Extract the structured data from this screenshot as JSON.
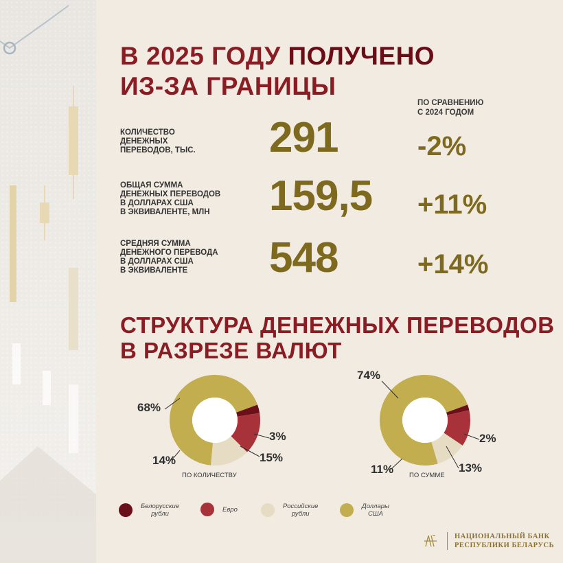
{
  "header": {
    "title_line1_prefix": "В 2025 ГОДУ",
    "title_line1_strong": "ПОЛУЧЕНО",
    "title_line2": "ИЗ-ЗА ГРАНИЦЫ",
    "comparison_line1": "ПО СРАВНЕНИЮ",
    "comparison_line2": "С 2024 ГОДОМ"
  },
  "rows": [
    {
      "label_lines": [
        "КОЛИЧЕСТВО",
        "ДЕНЕЖНЫХ",
        "ПЕРЕВОДОВ, ТЫС."
      ],
      "value": "291",
      "change": "-2%"
    },
    {
      "label_lines": [
        "ОБЩАЯ СУММА",
        "ДЕНЕЖНЫХ ПЕРЕВОДОВ",
        "В ДОЛЛАРАХ США",
        "В ЭКВИВАЛЕНТЕ, МЛН"
      ],
      "value": "159,5",
      "change": "+11%"
    },
    {
      "label_lines": [
        "СРЕДНЯЯ СУММА",
        "ДЕНЕЖНОГО ПЕРЕВОДА",
        "В ДОЛЛАРАХ США",
        "В ЭКВИВАЛЕНТЕ"
      ],
      "value": "548",
      "change": "+14%"
    }
  ],
  "structure": {
    "title_line1": "СТРУКТУРА ДЕНЕЖНЫХ ПЕРЕВОДОВ",
    "title_line2": "В РАЗРЕЗЕ ВАЛЮТ"
  },
  "colors": {
    "byn": "#6b1019",
    "eur": "#a8323a",
    "rub": "#e6dcc3",
    "usd": "#c2ad4f"
  },
  "chart_data": [
    {
      "type": "pie",
      "caption": "ПО КОЛИЧЕСТВУ",
      "categories": [
        "Белорусские рубли",
        "Евро",
        "Российские рубли",
        "Доллары США"
      ],
      "values": [
        3,
        15,
        14,
        68
      ],
      "labels": [
        "3%",
        "15%",
        "14%",
        "68%"
      ]
    },
    {
      "type": "pie",
      "caption": "ПО СУММЕ",
      "categories": [
        "Белорусские рубли",
        "Евро",
        "Российские рубли",
        "Доллары США"
      ],
      "values": [
        2,
        13,
        11,
        74
      ],
      "labels": [
        "2%",
        "13%",
        "11%",
        "74%"
      ]
    }
  ],
  "legend": [
    {
      "label_lines": [
        "Белорусские",
        "рубли"
      ],
      "color_key": "byn"
    },
    {
      "label_lines": [
        "Евро"
      ],
      "color_key": "eur"
    },
    {
      "label_lines": [
        "Российские",
        "рубли"
      ],
      "color_key": "rub"
    },
    {
      "label_lines": [
        "Доллары",
        "США"
      ],
      "color_key": "usd"
    }
  ],
  "footer": {
    "logo_icon": "national-bank-monogram",
    "bank_line1": "НАЦИОНАЛЬНЫЙ БАНК",
    "bank_line2": "РЕСПУБЛИКИ БЕЛАРУСЬ"
  }
}
